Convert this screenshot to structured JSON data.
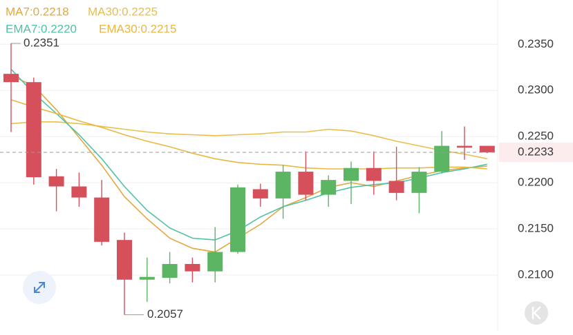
{
  "chart_data": {
    "type": "candlestick",
    "categories": [
      null,
      null,
      null,
      null,
      null,
      null,
      null,
      null,
      null,
      null,
      null,
      null,
      null,
      null,
      null,
      null,
      null,
      null,
      null,
      null,
      null,
      null
    ],
    "open": [
      0.2318,
      0.2309,
      0.2207,
      0.2196,
      0.2184,
      0.2138,
      0.2095,
      0.2097,
      0.2112,
      0.2104,
      0.2125,
      0.2193,
      0.2183,
      0.2212,
      0.2187,
      0.2202,
      0.2216,
      0.2202,
      0.2189,
      0.2212,
      0.224,
      0.224
    ],
    "high": [
      0.2351,
      0.2314,
      0.2215,
      0.2211,
      0.2203,
      0.2146,
      0.2119,
      0.2125,
      0.2119,
      0.2152,
      0.2198,
      0.2199,
      0.2219,
      0.2234,
      0.2208,
      0.2223,
      0.2234,
      0.2239,
      0.2217,
      0.2256,
      0.2261,
      0.224
    ],
    "low": [
      0.2255,
      0.2198,
      0.2169,
      0.2174,
      0.2132,
      0.2057,
      0.2071,
      0.2091,
      0.2092,
      0.2092,
      0.2123,
      0.2174,
      0.2161,
      0.2181,
      0.2174,
      0.2177,
      0.2187,
      0.2181,
      0.2167,
      0.221,
      0.2225,
      0.2232
    ],
    "close": [
      0.2309,
      0.2206,
      0.2196,
      0.2184,
      0.2136,
      0.2095,
      0.2098,
      0.2112,
      0.2104,
      0.2125,
      0.2195,
      0.2183,
      0.2212,
      0.2187,
      0.2203,
      0.2216,
      0.2202,
      0.2189,
      0.2212,
      0.224,
      0.2238,
      0.2233
    ],
    "up_color": "#5bb563",
    "down_color": "#d6505c",
    "series": [
      {
        "name": "MA7:0.2218",
        "color": "#e3a83e",
        "values": [
          0.2316,
          0.2305,
          0.2279,
          0.2249,
          0.2219,
          0.2185,
          0.2161,
          0.214,
          0.2129,
          0.2125,
          0.214,
          0.2155,
          0.2174,
          0.2184,
          0.2195,
          0.22,
          0.2196,
          0.2202,
          0.2208,
          0.2213,
          0.2216,
          0.2218
        ]
      },
      {
        "name": "MA30:0.2225",
        "color": "#e8bf4a",
        "values": [
          0.2264,
          0.2266,
          0.2266,
          0.2264,
          0.2261,
          0.2258,
          0.2255,
          0.2253,
          0.2252,
          0.2251,
          0.2252,
          0.2253,
          0.2255,
          0.2255,
          0.2258,
          0.2256,
          0.2251,
          0.2245,
          0.224,
          0.2235,
          0.2231,
          0.2226
        ]
      },
      {
        "name": "EMA7:0.2220",
        "color": "#4dc2a7",
        "values": [
          0.2323,
          0.2297,
          0.2275,
          0.2252,
          0.2226,
          0.2196,
          0.217,
          0.2151,
          0.214,
          0.2138,
          0.2148,
          0.2163,
          0.2174,
          0.2181,
          0.2189,
          0.2195,
          0.2198,
          0.22,
          0.2205,
          0.2211,
          0.2215,
          0.222
        ]
      },
      {
        "name": "EMA30:0.2215",
        "color": "#eab73f",
        "values": [
          0.229,
          0.2282,
          0.2275,
          0.2267,
          0.226,
          0.2252,
          0.2245,
          0.2239,
          0.2232,
          0.2226,
          0.2222,
          0.222,
          0.2219,
          0.2216,
          0.2215,
          0.2215,
          0.2215,
          0.2216,
          0.2216,
          0.2217,
          0.2217,
          0.2215
        ]
      }
    ],
    "ylim": [
      0.2047,
      0.2398
    ],
    "yticks": [
      {
        "value": 0.21,
        "label": "0.2100"
      },
      {
        "value": 0.215,
        "label": "0.2150"
      },
      {
        "value": 0.22,
        "label": "0.2200"
      },
      {
        "value": 0.225,
        "label": "0.2250"
      },
      {
        "value": 0.23,
        "label": "0.2300"
      },
      {
        "value": 0.235,
        "label": "0.2350"
      }
    ],
    "grid": true,
    "current_price": 0.2233,
    "high_label": 0.2351,
    "low_label": 0.2057
  }
}
